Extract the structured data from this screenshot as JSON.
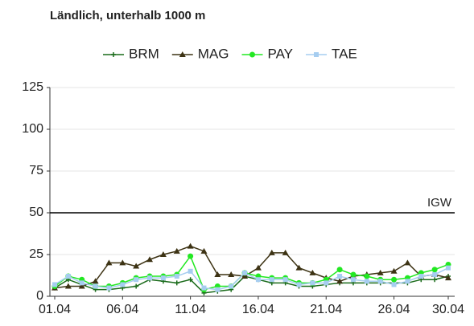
{
  "chart_data": {
    "type": "line",
    "title": "Ländlich, unterhalb 1000 m",
    "categories": [
      "01.04",
      null,
      null,
      null,
      null,
      "06.04",
      null,
      null,
      null,
      null,
      "11.04",
      null,
      null,
      null,
      null,
      "16.04",
      null,
      null,
      null,
      null,
      "21.04",
      null,
      null,
      null,
      null,
      "26.04",
      null,
      null,
      null,
      "30.04"
    ],
    "series": [
      {
        "name": "BRM",
        "color": "#1a6b1a",
        "marker": "plus",
        "values": [
          5,
          10,
          7,
          4,
          4,
          5,
          6,
          10,
          9,
          8,
          10,
          2,
          3,
          4,
          12,
          10,
          8,
          8,
          6,
          6,
          7,
          8,
          8,
          8,
          8,
          8,
          8,
          10,
          10,
          12
        ]
      },
      {
        "name": "MAG",
        "color": "#3d3314",
        "marker": "triangle",
        "values": [
          5,
          6,
          6,
          9,
          20,
          20,
          18,
          22,
          25,
          27,
          30,
          27,
          13,
          13,
          12,
          17,
          26,
          26,
          17,
          14,
          11,
          9,
          12,
          13,
          14,
          15,
          20,
          12,
          13,
          11
        ]
      },
      {
        "name": "PAY",
        "color": "#22e822",
        "marker": "circle",
        "values": [
          6,
          12,
          10,
          6,
          6,
          8,
          11,
          12,
          12,
          13,
          24,
          4,
          6,
          6,
          14,
          12,
          11,
          11,
          8,
          8,
          10,
          16,
          13,
          12,
          10,
          10,
          11,
          14,
          16,
          19
        ]
      },
      {
        "name": "TAE",
        "color": "#a6cdf0",
        "marker": "square",
        "values": [
          7,
          12,
          8,
          6,
          5,
          7,
          10,
          11,
          11,
          12,
          15,
          5,
          4,
          6,
          14,
          10,
          10,
          10,
          7,
          8,
          8,
          12,
          10,
          9,
          9,
          7,
          9,
          12,
          13,
          17
        ]
      }
    ],
    "ylim": [
      0,
      125
    ],
    "yticks": [
      0,
      25,
      50,
      75,
      100,
      125
    ],
    "grid": true,
    "threshold": {
      "value": 50,
      "label": "IGW"
    },
    "legend": "top"
  }
}
